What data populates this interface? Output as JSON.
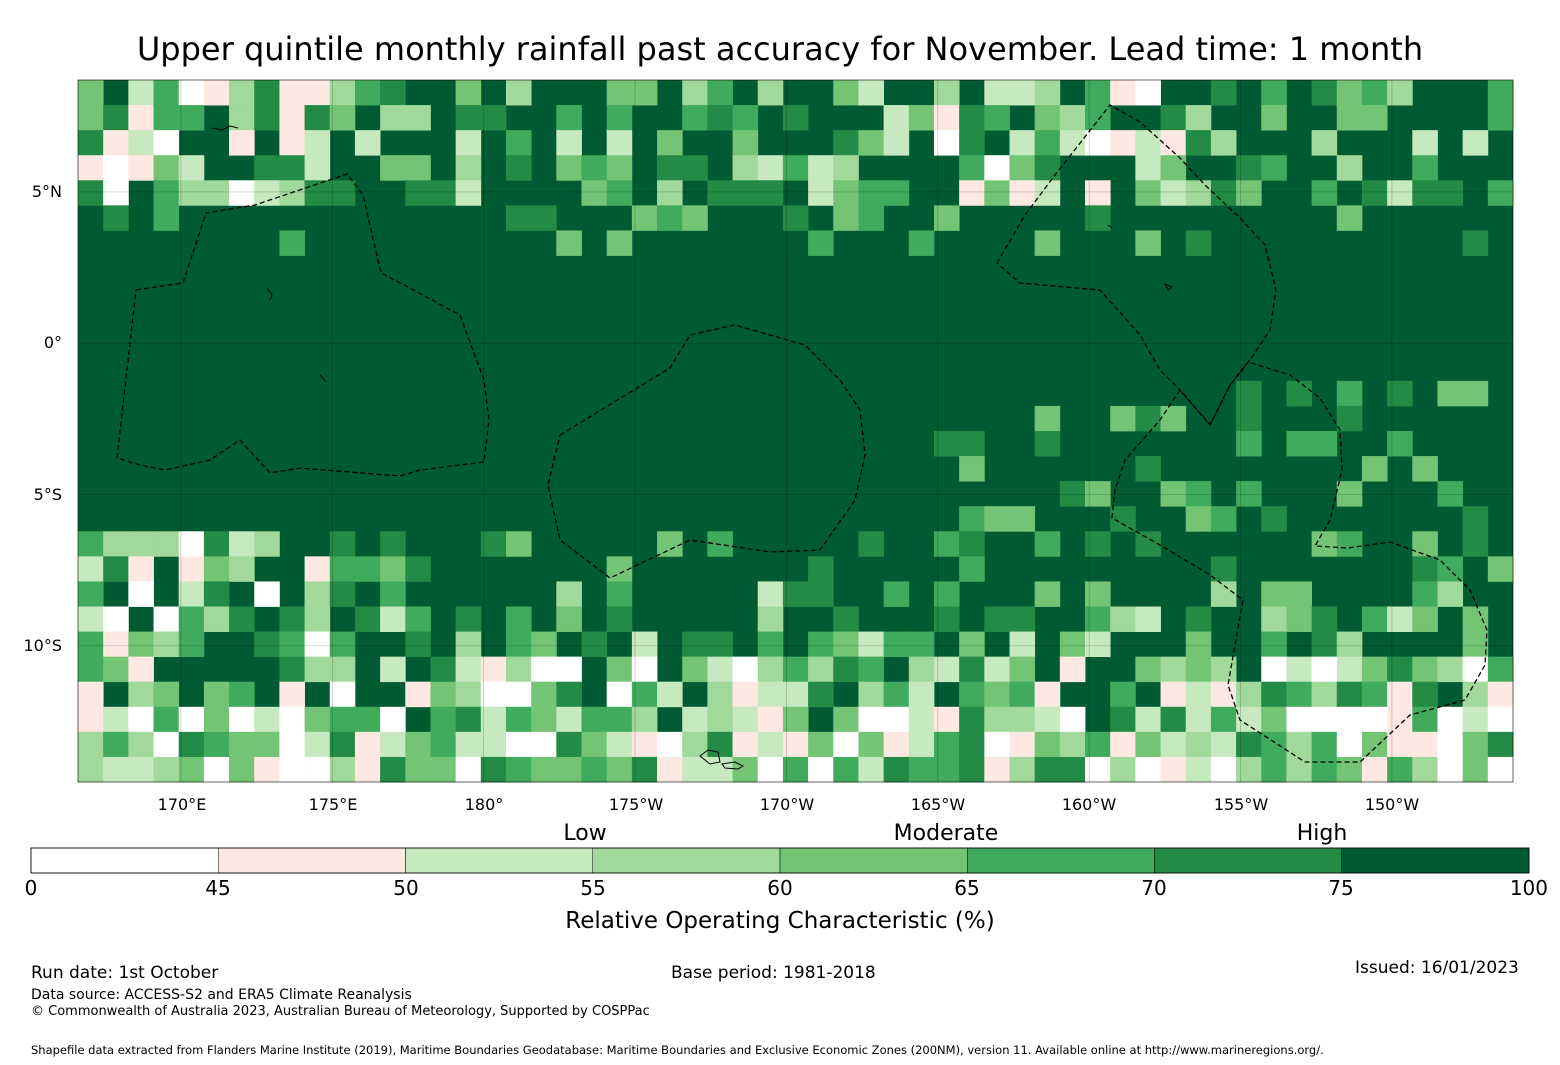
{
  "title": "Upper quintile monthly rainfall past accuracy for November. Lead time: 1 month",
  "map": {
    "lat_labels": [
      "5°N",
      "0°",
      "5°S",
      "10°S"
    ],
    "lon_labels": [
      "170°E",
      "175°E",
      "180°",
      "175°W",
      "170°W",
      "165°W",
      "160°W",
      "155°W",
      "150°W"
    ],
    "lat_values": [
      5,
      0,
      -5,
      -10
    ],
    "lon_values": [
      170,
      175,
      180,
      185,
      190,
      195,
      200,
      205,
      210
    ],
    "extent": {
      "lon_min": 166.6,
      "lon_max": 214.0,
      "lat_min": -14.5,
      "lat_max": 8.7
    },
    "grid_resolution_deg": 0.83,
    "dominant_category": "75-100"
  },
  "colorbar": {
    "title": "Relative Operating Characteristic (%)",
    "categories": [
      "Low",
      "Moderate",
      "High"
    ],
    "tick_labels": [
      "0",
      "45",
      "50",
      "55",
      "60",
      "65",
      "70",
      "75",
      "100"
    ],
    "bins": [
      {
        "range": "0-45",
        "color": "#ffffff"
      },
      {
        "range": "45-50",
        "color": "#fee9e2"
      },
      {
        "range": "50-55",
        "color": "#c7e9c0"
      },
      {
        "range": "55-60",
        "color": "#a1d99b"
      },
      {
        "range": "60-65",
        "color": "#74c476"
      },
      {
        "range": "65-70",
        "color": "#41ab5d"
      },
      {
        "range": "70-75",
        "color": "#238b45"
      },
      {
        "range": "75-100",
        "color": "#005a32"
      }
    ]
  },
  "footer": {
    "run_date": "Run date: 1st October",
    "base_period": "Base period: 1981-2018",
    "issued": "Issued: 16/01/2023",
    "data_source": "Data source: ACCESS-S2 and ERA5 Climate Reanalysis",
    "copyright": "© Commonwealth of Australia 2023, Australian Bureau of Meteorology, Supported by COSPPac",
    "shapefile": "Shapefile data extracted from Flanders Marine Institute (2019), Maritime Boundaries Geodatabase: Maritime Boundaries and Exclusive Economic Zones (200NM), version 11. Available online at http://www.marineregions.org/."
  }
}
